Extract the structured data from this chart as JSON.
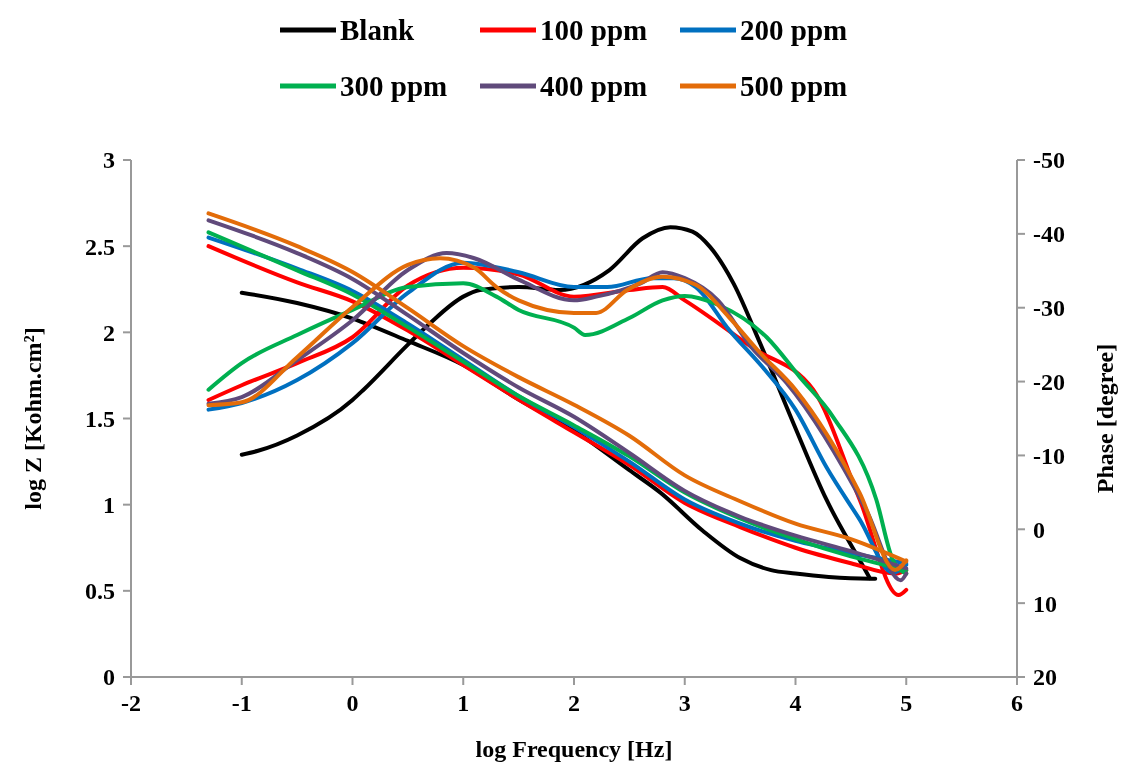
{
  "chart_data": {
    "type": "line",
    "xlabel": "log Frequency [Hz]",
    "ylabel": "log Z [Kohm.cm²]",
    "y2label": "Phase [degree]",
    "xlim": [
      -2,
      6
    ],
    "xticks": [
      -2,
      -1,
      0,
      1,
      2,
      3,
      4,
      5,
      6
    ],
    "ylim": [
      0,
      3
    ],
    "yticks": [
      0,
      0.5,
      1,
      1.5,
      2,
      2.5,
      3
    ],
    "y2lim": [
      20,
      -50
    ],
    "y2ticks": [
      20,
      10,
      0,
      -10,
      -20,
      -30,
      -40,
      -50
    ],
    "legend": "top",
    "grid": false,
    "marker": "none",
    "line_style": "solid",
    "series": [
      {
        "name": "Blank",
        "color": "#000000",
        "x": [
          -1,
          -0.5,
          0,
          0.5,
          1,
          1.5,
          2,
          2.5,
          2.78,
          3.16,
          3.5,
          3.78,
          4,
          4.3,
          4.67,
          4.72
        ],
        "values": [
          2.23,
          2.17,
          2.08,
          1.95,
          1.81,
          1.61,
          1.43,
          1.2,
          1.07,
          0.85,
          0.69,
          0.62,
          0.6,
          0.58,
          0.57,
          0.57
        ]
      },
      {
        "color": "#000000",
        "axis": "y2",
        "x": [
          -1,
          -0.86,
          -0.5,
          0,
          0.1,
          0.5,
          0.7,
          1,
          1.15,
          1.5,
          1.87,
          2.32,
          2.62,
          2.87,
          3.07,
          3.23,
          3.44,
          3.68,
          3.98,
          4.28,
          4.58,
          4.67
        ],
        "values": [
          -10.1,
          -10.6,
          -12.7,
          -17.5,
          -18.9,
          -25,
          -27.9,
          -31.5,
          -32.4,
          -32.8,
          -32.4,
          -35.1,
          -39.4,
          -40.9,
          -40.3,
          -38.2,
          -33.3,
          -25.2,
          -14.4,
          -4,
          4.2,
          6.6
        ]
      },
      {
        "name": "100 ppm",
        "color": "#ff0000",
        "x": [
          -1.3,
          -0.5,
          0,
          0.5,
          1,
          1.5,
          2,
          2.5,
          3,
          3.5,
          4,
          4.5,
          4.9,
          5
        ],
        "values": [
          2.5,
          2.29,
          2.18,
          2.01,
          1.81,
          1.61,
          1.42,
          1.23,
          1.01,
          0.87,
          0.75,
          0.66,
          0.6,
          0.62
        ]
      },
      {
        "color": "#ff0000",
        "axis": "y2",
        "x": [
          -1.3,
          -1,
          -0.5,
          0,
          0.5,
          1,
          1.5,
          2,
          2.5,
          2.8,
          3,
          3.62,
          4.16,
          4.58,
          4.93,
          5
        ],
        "values": [
          -17.5,
          -19.5,
          -22.5,
          -26,
          -33,
          -35.4,
          -34.5,
          -31.5,
          -32.4,
          -32.8,
          -31,
          -24.5,
          -18.9,
          -4,
          8.9,
          8.2
        ]
      },
      {
        "name": "200 ppm",
        "color": "#0070c0",
        "x": [
          -1.3,
          -0.5,
          0,
          0.5,
          1,
          1.5,
          2,
          2.5,
          3,
          3.5,
          4,
          4.5,
          5
        ],
        "values": [
          2.55,
          2.37,
          2.24,
          2.05,
          1.84,
          1.63,
          1.45,
          1.25,
          1.03,
          0.89,
          0.79,
          0.72,
          0.66
        ]
      },
      {
        "color": "#0070c0",
        "axis": "y2",
        "x": [
          -1.3,
          -1,
          -0.5,
          0,
          0.5,
          1,
          1.5,
          2,
          2.3,
          2.7,
          2.9,
          3.1,
          3.4,
          3.7,
          4,
          4.28,
          4.58,
          4.88,
          5
        ],
        "values": [
          -16.2,
          -17.1,
          -20.2,
          -25.2,
          -32,
          -36.1,
          -34.8,
          -32.8,
          -32.8,
          -34,
          -34,
          -32.8,
          -27,
          -22,
          -16.2,
          -8.4,
          -1.3,
          5.9,
          4.8
        ]
      },
      {
        "name": "300 ppm",
        "color": "#00b050",
        "x": [
          -1.3,
          -0.5,
          0,
          0.5,
          1,
          1.5,
          2,
          2.5,
          3,
          3.5,
          4,
          4.5,
          5
        ],
        "values": [
          2.58,
          2.36,
          2.22,
          2.03,
          1.83,
          1.63,
          1.46,
          1.28,
          1.07,
          0.92,
          0.8,
          0.7,
          0.62
        ]
      },
      {
        "color": "#00b050",
        "axis": "y2",
        "x": [
          -1.3,
          -1,
          -0.5,
          0,
          0.5,
          1,
          1.3,
          1.5,
          2,
          2.1,
          2.5,
          2.8,
          3,
          3.3,
          3.74,
          4.04,
          4.34,
          4.73,
          4.88,
          5
        ],
        "values": [
          -18.9,
          -22.5,
          -26.3,
          -29.7,
          -32.8,
          -33.3,
          -31.5,
          -29.7,
          -27.3,
          -26.3,
          -28.6,
          -31,
          -31.6,
          -30.4,
          -26,
          -20.6,
          -15.2,
          -4,
          4.2,
          6
        ]
      },
      {
        "name": "400 ppm",
        "color": "#604a7b",
        "x": [
          -1.3,
          -0.5,
          0,
          0.5,
          1,
          1.5,
          2,
          2.5,
          3,
          3.5,
          4,
          4.5,
          5
        ],
        "values": [
          2.65,
          2.46,
          2.31,
          2.1,
          1.88,
          1.68,
          1.51,
          1.3,
          1.08,
          0.93,
          0.82,
          0.73,
          0.63
        ]
      },
      {
        "color": "#604a7b",
        "axis": "y2",
        "x": [
          -1.3,
          -1,
          -0.5,
          0,
          0.5,
          0.85,
          1.1,
          1.5,
          2,
          2.2,
          2.6,
          2.8,
          3,
          3.3,
          3.6,
          3.92,
          4.64,
          4.95,
          5
        ],
        "values": [
          -17,
          -17.9,
          -22.9,
          -28.3,
          -35.1,
          -37.4,
          -36.7,
          -33.8,
          -31,
          -31.5,
          -33.3,
          -34.8,
          -34,
          -31,
          -24.7,
          -19.8,
          -2.6,
          6.9,
          6
        ]
      },
      {
        "name": "500 ppm",
        "color": "#e36c09",
        "x": [
          -1.3,
          -0.5,
          0,
          0.5,
          1,
          1.5,
          2,
          2.5,
          3,
          3.5,
          4,
          4.5,
          5
        ],
        "values": [
          2.69,
          2.5,
          2.35,
          2.14,
          1.92,
          1.74,
          1.58,
          1.4,
          1.17,
          1.02,
          0.89,
          0.8,
          0.67
        ]
      },
      {
        "color": "#e36c09",
        "axis": "y2",
        "x": [
          -1.3,
          -1,
          -0.5,
          0,
          0.5,
          0.79,
          1.1,
          1.3,
          1.5,
          2,
          2.2,
          2.48,
          2.8,
          3.1,
          3.4,
          3.68,
          4,
          4.58,
          4.9,
          5
        ],
        "values": [
          -16.8,
          -17.2,
          -23.3,
          -30.1,
          -35.8,
          -36.7,
          -35.4,
          -32.8,
          -31,
          -29.3,
          -29.3,
          -32.4,
          -34.2,
          -33.1,
          -28.7,
          -23.9,
          -18.9,
          -4.9,
          5.5,
          4.2
        ]
      }
    ]
  }
}
